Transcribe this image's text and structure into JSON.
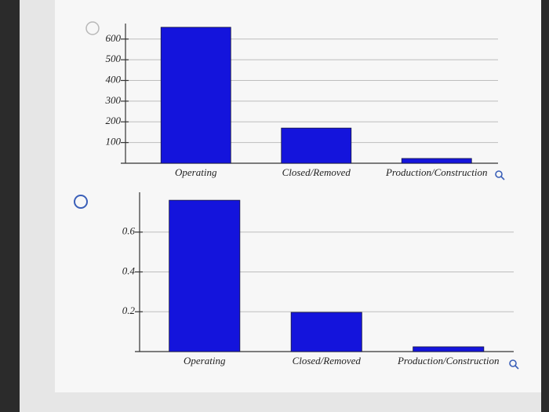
{
  "chart_data": [
    {
      "type": "bar",
      "categories": [
        "Operating",
        "Closed/Removed",
        "Production/Construction"
      ],
      "values": [
        657,
        170,
        23
      ],
      "color": "#1414dc",
      "ylim": [
        0,
        675
      ],
      "yticks": [
        100,
        200,
        300,
        400,
        500,
        600
      ],
      "grid": true
    },
    {
      "type": "bar",
      "categories": [
        "Operating",
        "Closed/Removed",
        "Production/Construction"
      ],
      "values": [
        0.76,
        0.197,
        0.024
      ],
      "color": "#1414dc",
      "ylim": [
        0,
        0.8
      ],
      "yticks": [
        0.2,
        0.4,
        0.6
      ],
      "grid": true
    }
  ]
}
